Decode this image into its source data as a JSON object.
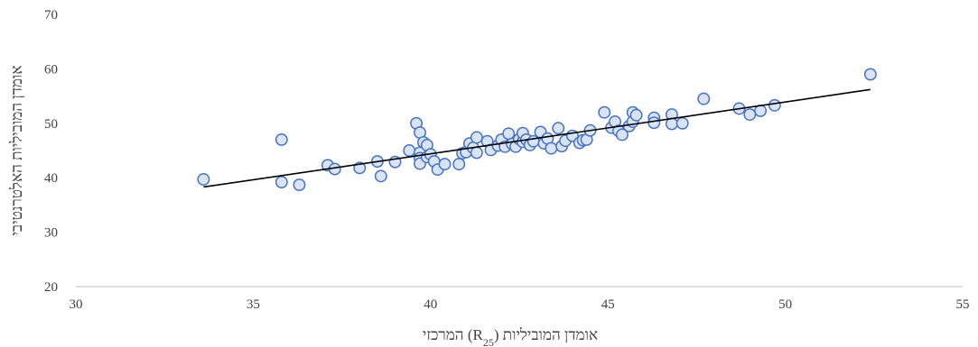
{
  "chart_data": {
    "type": "scatter",
    "xlabel": "אומדן המוביליות (R25) המרכזי",
    "xlabel_parts": {
      "before": "אומדן המוביליות (R",
      "sub": "25",
      "after": ") המרכזי"
    },
    "ylabel": "אומדן המוביליות האלטרנטיבי",
    "xlim": [
      30,
      55
    ],
    "ylim": [
      20,
      70
    ],
    "xticks": [
      "30",
      "35",
      "40",
      "45",
      "50",
      "55"
    ],
    "yticks": [
      "20",
      "30",
      "40",
      "50",
      "60",
      "70"
    ],
    "grid": false,
    "legend": "none",
    "marker_fill": "#DAE3F3",
    "marker_edge": "#4472C4",
    "trendline_color": "#000000",
    "trendline": {
      "x": [
        33.6,
        52.4
      ],
      "y": [
        38.3,
        56.2
      ]
    },
    "series": [
      {
        "points": [
          [
            33.6,
            39.7
          ],
          [
            35.8,
            39.2
          ],
          [
            35.8,
            47.0
          ],
          [
            36.3,
            38.7
          ],
          [
            37.1,
            42.3
          ],
          [
            37.3,
            41.6
          ],
          [
            38.0,
            41.8
          ],
          [
            38.5,
            43.0
          ],
          [
            38.6,
            40.3
          ],
          [
            39.0,
            42.9
          ],
          [
            39.4,
            45.0
          ],
          [
            39.6,
            50.0
          ],
          [
            39.7,
            48.3
          ],
          [
            39.7,
            44.6
          ],
          [
            39.7,
            43.6
          ],
          [
            39.7,
            42.6
          ],
          [
            39.8,
            46.5
          ],
          [
            39.9,
            46.0
          ],
          [
            39.9,
            43.8
          ],
          [
            40.0,
            44.3
          ],
          [
            40.1,
            43.0
          ],
          [
            40.2,
            41.5
          ],
          [
            40.4,
            42.5
          ],
          [
            40.8,
            42.5
          ],
          [
            40.9,
            44.5
          ],
          [
            41.0,
            44.7
          ],
          [
            41.1,
            46.3
          ],
          [
            41.2,
            45.5
          ],
          [
            41.3,
            47.4
          ],
          [
            41.3,
            44.6
          ],
          [
            41.6,
            46.7
          ],
          [
            41.7,
            45.1
          ],
          [
            41.9,
            45.9
          ],
          [
            42.0,
            47.0
          ],
          [
            42.1,
            45.7
          ],
          [
            42.2,
            48.1
          ],
          [
            42.3,
            46.2
          ],
          [
            42.4,
            45.7
          ],
          [
            42.5,
            47.1
          ],
          [
            42.6,
            46.6
          ],
          [
            42.6,
            48.2
          ],
          [
            42.7,
            47.0
          ],
          [
            42.8,
            46.0
          ],
          [
            42.9,
            46.7
          ],
          [
            43.1,
            48.4
          ],
          [
            43.2,
            46.3
          ],
          [
            43.3,
            47.2
          ],
          [
            43.4,
            45.4
          ],
          [
            43.6,
            49.1
          ],
          [
            43.7,
            45.8
          ],
          [
            43.8,
            46.8
          ],
          [
            44.0,
            47.7
          ],
          [
            44.2,
            46.4
          ],
          [
            44.3,
            46.9
          ],
          [
            44.4,
            47.0
          ],
          [
            44.5,
            48.7
          ],
          [
            44.9,
            52.0
          ],
          [
            45.1,
            49.2
          ],
          [
            45.2,
            50.3
          ],
          [
            45.3,
            48.6
          ],
          [
            45.4,
            47.9
          ],
          [
            45.6,
            49.5
          ],
          [
            45.7,
            52.0
          ],
          [
            45.7,
            50.3
          ],
          [
            45.8,
            51.5
          ],
          [
            46.3,
            51.0
          ],
          [
            46.3,
            50.1
          ],
          [
            46.8,
            51.6
          ],
          [
            46.8,
            49.9
          ],
          [
            47.1,
            50.0
          ],
          [
            47.7,
            54.5
          ],
          [
            48.7,
            52.7
          ],
          [
            49.0,
            51.6
          ],
          [
            49.3,
            52.3
          ],
          [
            49.7,
            53.3
          ],
          [
            52.4,
            59.0
          ]
        ]
      }
    ]
  }
}
